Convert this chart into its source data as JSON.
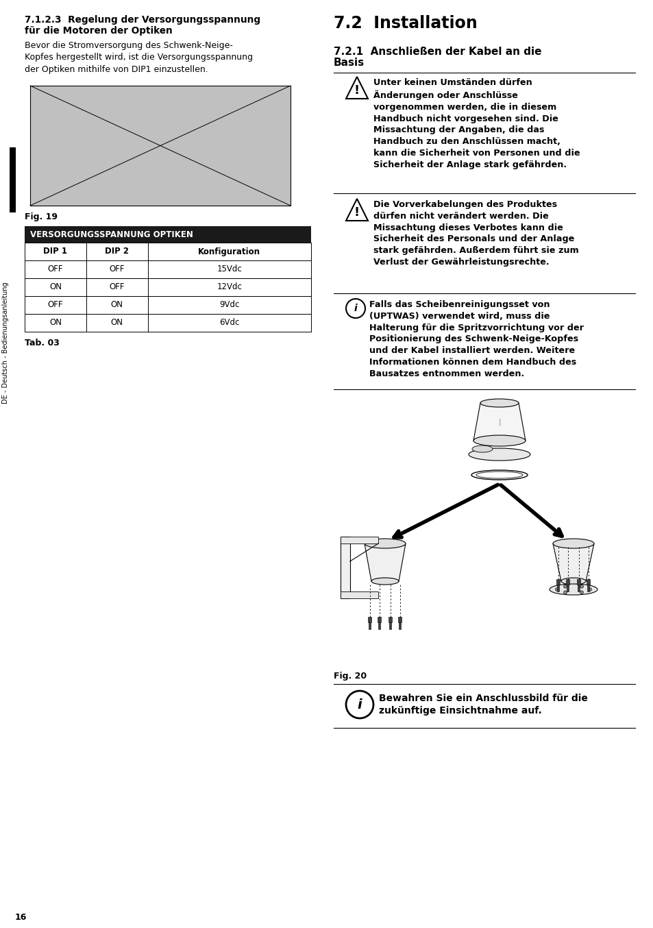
{
  "page_bg": "#ffffff",
  "section_7123_title_line1": "7.1.2.3  Regelung der Versorgungsspannung",
  "section_7123_title_line2": "für die Motoren der Optiken",
  "section_7123_body": "Bevor die Stromversorgung des Schwenk-Neige-\nKopfes hergestellt wird, ist die Versorgungsspannung\nder Optiken mithilfe von DIP1 einzustellen.",
  "fig19_label": "Fig. 19",
  "table_title": "VERSORGUNGSSPANNUNG OPTIKEN",
  "table_headers": [
    "DIP 1",
    "DIP 2",
    "Konfiguration"
  ],
  "table_rows": [
    [
      "OFF",
      "OFF",
      "15Vdc"
    ],
    [
      "ON",
      "OFF",
      "12Vdc"
    ],
    [
      "OFF",
      "ON",
      "9Vdc"
    ],
    [
      "ON",
      "ON",
      "6Vdc"
    ]
  ],
  "tab03_label": "Tab. 03",
  "sidebar_text": "DE - Deutsch - Bedienungsanleitung",
  "section_72_title": "7.2  Installation",
  "section_721_line1": "7.2.1  Anschließen der Kabel an die",
  "section_721_line2": "Basis",
  "warning1_text": "Unter keinen Umständen dürfen\nÄnderungen oder Anschlüsse\nvorgenommen werden, die in diesem\nHandbuch nicht vorgesehen sind. Die\nMissachtung der Angaben, die das\nHandbuch zu den Anschlüssen macht,\nkann die Sicherheit von Personen und die\nSicherheit der Anlage stark gefährden.",
  "warning2_text": "Die Vorverkabelungen des Produktes\ndürfen nicht verändert werden. Die\nMissachtung dieses Verbotes kann die\nSicherheit des Personals und der Anlage\nstark gefährden. Außerdem führt sie zum\nVerlust der Gewährleistungsrechte.",
  "info1_text": "Falls das Scheibenreinigungsset von\n(UPTWAS) verwendet wird, muss die\nHalterung für die Spritzvorrichtung vor der\nPositionierung des Schwenk-Neige-Kopfes\nund der Kabel installiert werden. Weitere\nInformationen können dem Handbuch des\nBausatzes entnommen werden.",
  "fig20_label": "Fig. 20",
  "info2_text": "Bewahren Sie ein Anschlussbild für die\nzukünftige Einsichtnahme auf.",
  "page_number": "16"
}
